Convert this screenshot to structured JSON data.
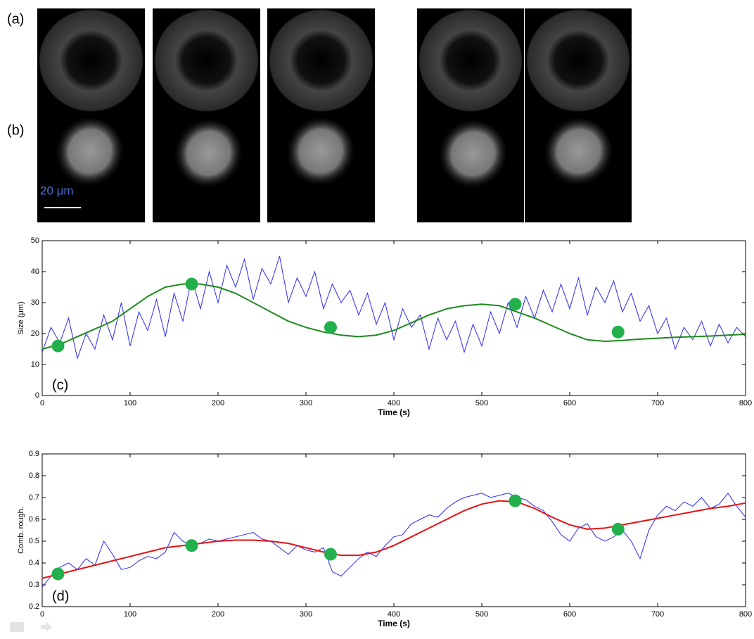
{
  "figure_panels": {
    "row_labels": [
      "(a)",
      "(b)"
    ],
    "scale_bar": "20 μm"
  },
  "chart_data": [
    {
      "type": "line",
      "annotation": "(c)",
      "x_label": "Time (s)",
      "y_label": "Size (μm)",
      "xlim": [
        0,
        800
      ],
      "ylim": [
        0,
        50
      ],
      "xticks": [
        0,
        100,
        200,
        300,
        400,
        500,
        600,
        700,
        800
      ],
      "yticks": [
        0,
        10,
        20,
        30,
        40,
        50
      ],
      "series": [
        {
          "color": "#2a2af0",
          "mode": "line",
          "width": 1,
          "x": [
            0,
            10,
            20,
            30,
            40,
            50,
            60,
            70,
            80,
            90,
            100,
            110,
            120,
            130,
            140,
            150,
            160,
            170,
            180,
            190,
            200,
            210,
            220,
            230,
            240,
            250,
            260,
            270,
            280,
            290,
            300,
            310,
            320,
            330,
            340,
            350,
            360,
            370,
            380,
            390,
            400,
            410,
            420,
            430,
            440,
            450,
            460,
            470,
            480,
            490,
            500,
            510,
            520,
            530,
            540,
            550,
            560,
            570,
            580,
            590,
            600,
            610,
            620,
            630,
            640,
            650,
            660,
            670,
            680,
            690,
            700,
            710,
            720,
            730,
            740,
            750,
            760,
            770,
            780,
            790,
            800
          ],
          "values": [
            14,
            22,
            17,
            25,
            12,
            20,
            15,
            26,
            18,
            30,
            16,
            27,
            21,
            31,
            19,
            33,
            24,
            38,
            28,
            40,
            30,
            42,
            35,
            44,
            31,
            41,
            36,
            45,
            30,
            38,
            32,
            40,
            28,
            36,
            30,
            34,
            26,
            33,
            23,
            30,
            18,
            28,
            22,
            26,
            15,
            25,
            18,
            24,
            14,
            23,
            16,
            27,
            20,
            30,
            22,
            32,
            25,
            34,
            27,
            36,
            28,
            38,
            26,
            35,
            30,
            37,
            27,
            33,
            24,
            29,
            20,
            25,
            15,
            22,
            18,
            24,
            16,
            23,
            17,
            22,
            19
          ]
        },
        {
          "color": "#1e8a1e",
          "mode": "line",
          "width": 2,
          "x": [
            0,
            20,
            40,
            60,
            80,
            100,
            120,
            140,
            160,
            180,
            200,
            220,
            240,
            260,
            280,
            300,
            320,
            340,
            360,
            380,
            400,
            420,
            440,
            460,
            480,
            500,
            520,
            540,
            560,
            580,
            600,
            620,
            640,
            660,
            680,
            700,
            720,
            740,
            760,
            780,
            800
          ],
          "values": [
            15,
            16.5,
            19,
            21.5,
            24,
            28,
            32,
            35,
            36,
            36,
            35,
            33,
            30,
            27,
            24,
            22,
            20.5,
            19.5,
            19,
            19.5,
            21,
            23.5,
            26,
            28,
            29,
            29.5,
            29,
            27,
            25,
            22.5,
            20,
            18,
            17.5,
            17.8,
            18.2,
            18.5,
            18.8,
            19,
            19.2,
            19.5,
            19.8
          ]
        },
        {
          "color": "#22b04c",
          "mode": "markers",
          "x": [
            18,
            170,
            328,
            538,
            655
          ],
          "values": [
            16,
            36,
            22,
            29.5,
            20.5
          ]
        }
      ]
    },
    {
      "type": "line",
      "annotation": "(d)",
      "x_label": "Time (s)",
      "y_label": "Comb. rough.",
      "xlim": [
        0,
        800
      ],
      "ylim": [
        0.2,
        0.9
      ],
      "xticks": [
        0,
        100,
        200,
        300,
        400,
        500,
        600,
        700,
        800
      ],
      "yticks": [
        0.2,
        0.3,
        0.4,
        0.5,
        0.6,
        0.7,
        0.8,
        0.9
      ],
      "series": [
        {
          "color": "#2a2af0",
          "mode": "line",
          "width": 1,
          "x": [
            0,
            10,
            20,
            30,
            40,
            50,
            60,
            70,
            80,
            90,
            100,
            110,
            120,
            130,
            140,
            150,
            160,
            170,
            180,
            190,
            200,
            210,
            220,
            230,
            240,
            250,
            260,
            270,
            280,
            290,
            300,
            310,
            320,
            330,
            340,
            350,
            360,
            370,
            380,
            390,
            400,
            410,
            420,
            430,
            440,
            450,
            460,
            470,
            480,
            490,
            500,
            510,
            520,
            530,
            540,
            550,
            560,
            570,
            580,
            590,
            600,
            610,
            620,
            630,
            640,
            650,
            660,
            670,
            680,
            690,
            700,
            710,
            720,
            730,
            740,
            750,
            760,
            770,
            780,
            790,
            800
          ],
          "values": [
            0.29,
            0.34,
            0.38,
            0.4,
            0.37,
            0.42,
            0.39,
            0.5,
            0.44,
            0.37,
            0.38,
            0.41,
            0.43,
            0.42,
            0.45,
            0.54,
            0.5,
            0.48,
            0.49,
            0.51,
            0.5,
            0.51,
            0.52,
            0.53,
            0.54,
            0.51,
            0.5,
            0.47,
            0.44,
            0.48,
            0.46,
            0.45,
            0.47,
            0.36,
            0.34,
            0.38,
            0.42,
            0.45,
            0.43,
            0.48,
            0.52,
            0.53,
            0.58,
            0.6,
            0.62,
            0.61,
            0.65,
            0.68,
            0.7,
            0.71,
            0.72,
            0.7,
            0.71,
            0.72,
            0.7,
            0.69,
            0.66,
            0.64,
            0.59,
            0.53,
            0.5,
            0.56,
            0.58,
            0.52,
            0.5,
            0.52,
            0.55,
            0.5,
            0.42,
            0.55,
            0.62,
            0.66,
            0.64,
            0.68,
            0.66,
            0.7,
            0.65,
            0.67,
            0.72,
            0.66,
            0.61
          ]
        },
        {
          "color": "#e81010",
          "mode": "line",
          "width": 2,
          "x": [
            0,
            20,
            40,
            60,
            80,
            100,
            120,
            140,
            160,
            180,
            200,
            220,
            240,
            260,
            280,
            300,
            320,
            340,
            360,
            380,
            400,
            420,
            440,
            460,
            480,
            500,
            520,
            540,
            560,
            580,
            600,
            620,
            640,
            660,
            680,
            700,
            720,
            740,
            760,
            780,
            800
          ],
          "values": [
            0.33,
            0.35,
            0.37,
            0.39,
            0.41,
            0.43,
            0.45,
            0.47,
            0.48,
            0.49,
            0.5,
            0.505,
            0.505,
            0.5,
            0.49,
            0.47,
            0.45,
            0.435,
            0.435,
            0.45,
            0.48,
            0.52,
            0.56,
            0.6,
            0.64,
            0.67,
            0.685,
            0.68,
            0.65,
            0.61,
            0.575,
            0.555,
            0.56,
            0.575,
            0.59,
            0.605,
            0.62,
            0.635,
            0.65,
            0.66,
            0.675
          ]
        },
        {
          "color": "#22b04c",
          "mode": "markers",
          "x": [
            18,
            170,
            328,
            538,
            655
          ],
          "values": [
            0.35,
            0.48,
            0.44,
            0.685,
            0.555
          ]
        }
      ]
    }
  ]
}
